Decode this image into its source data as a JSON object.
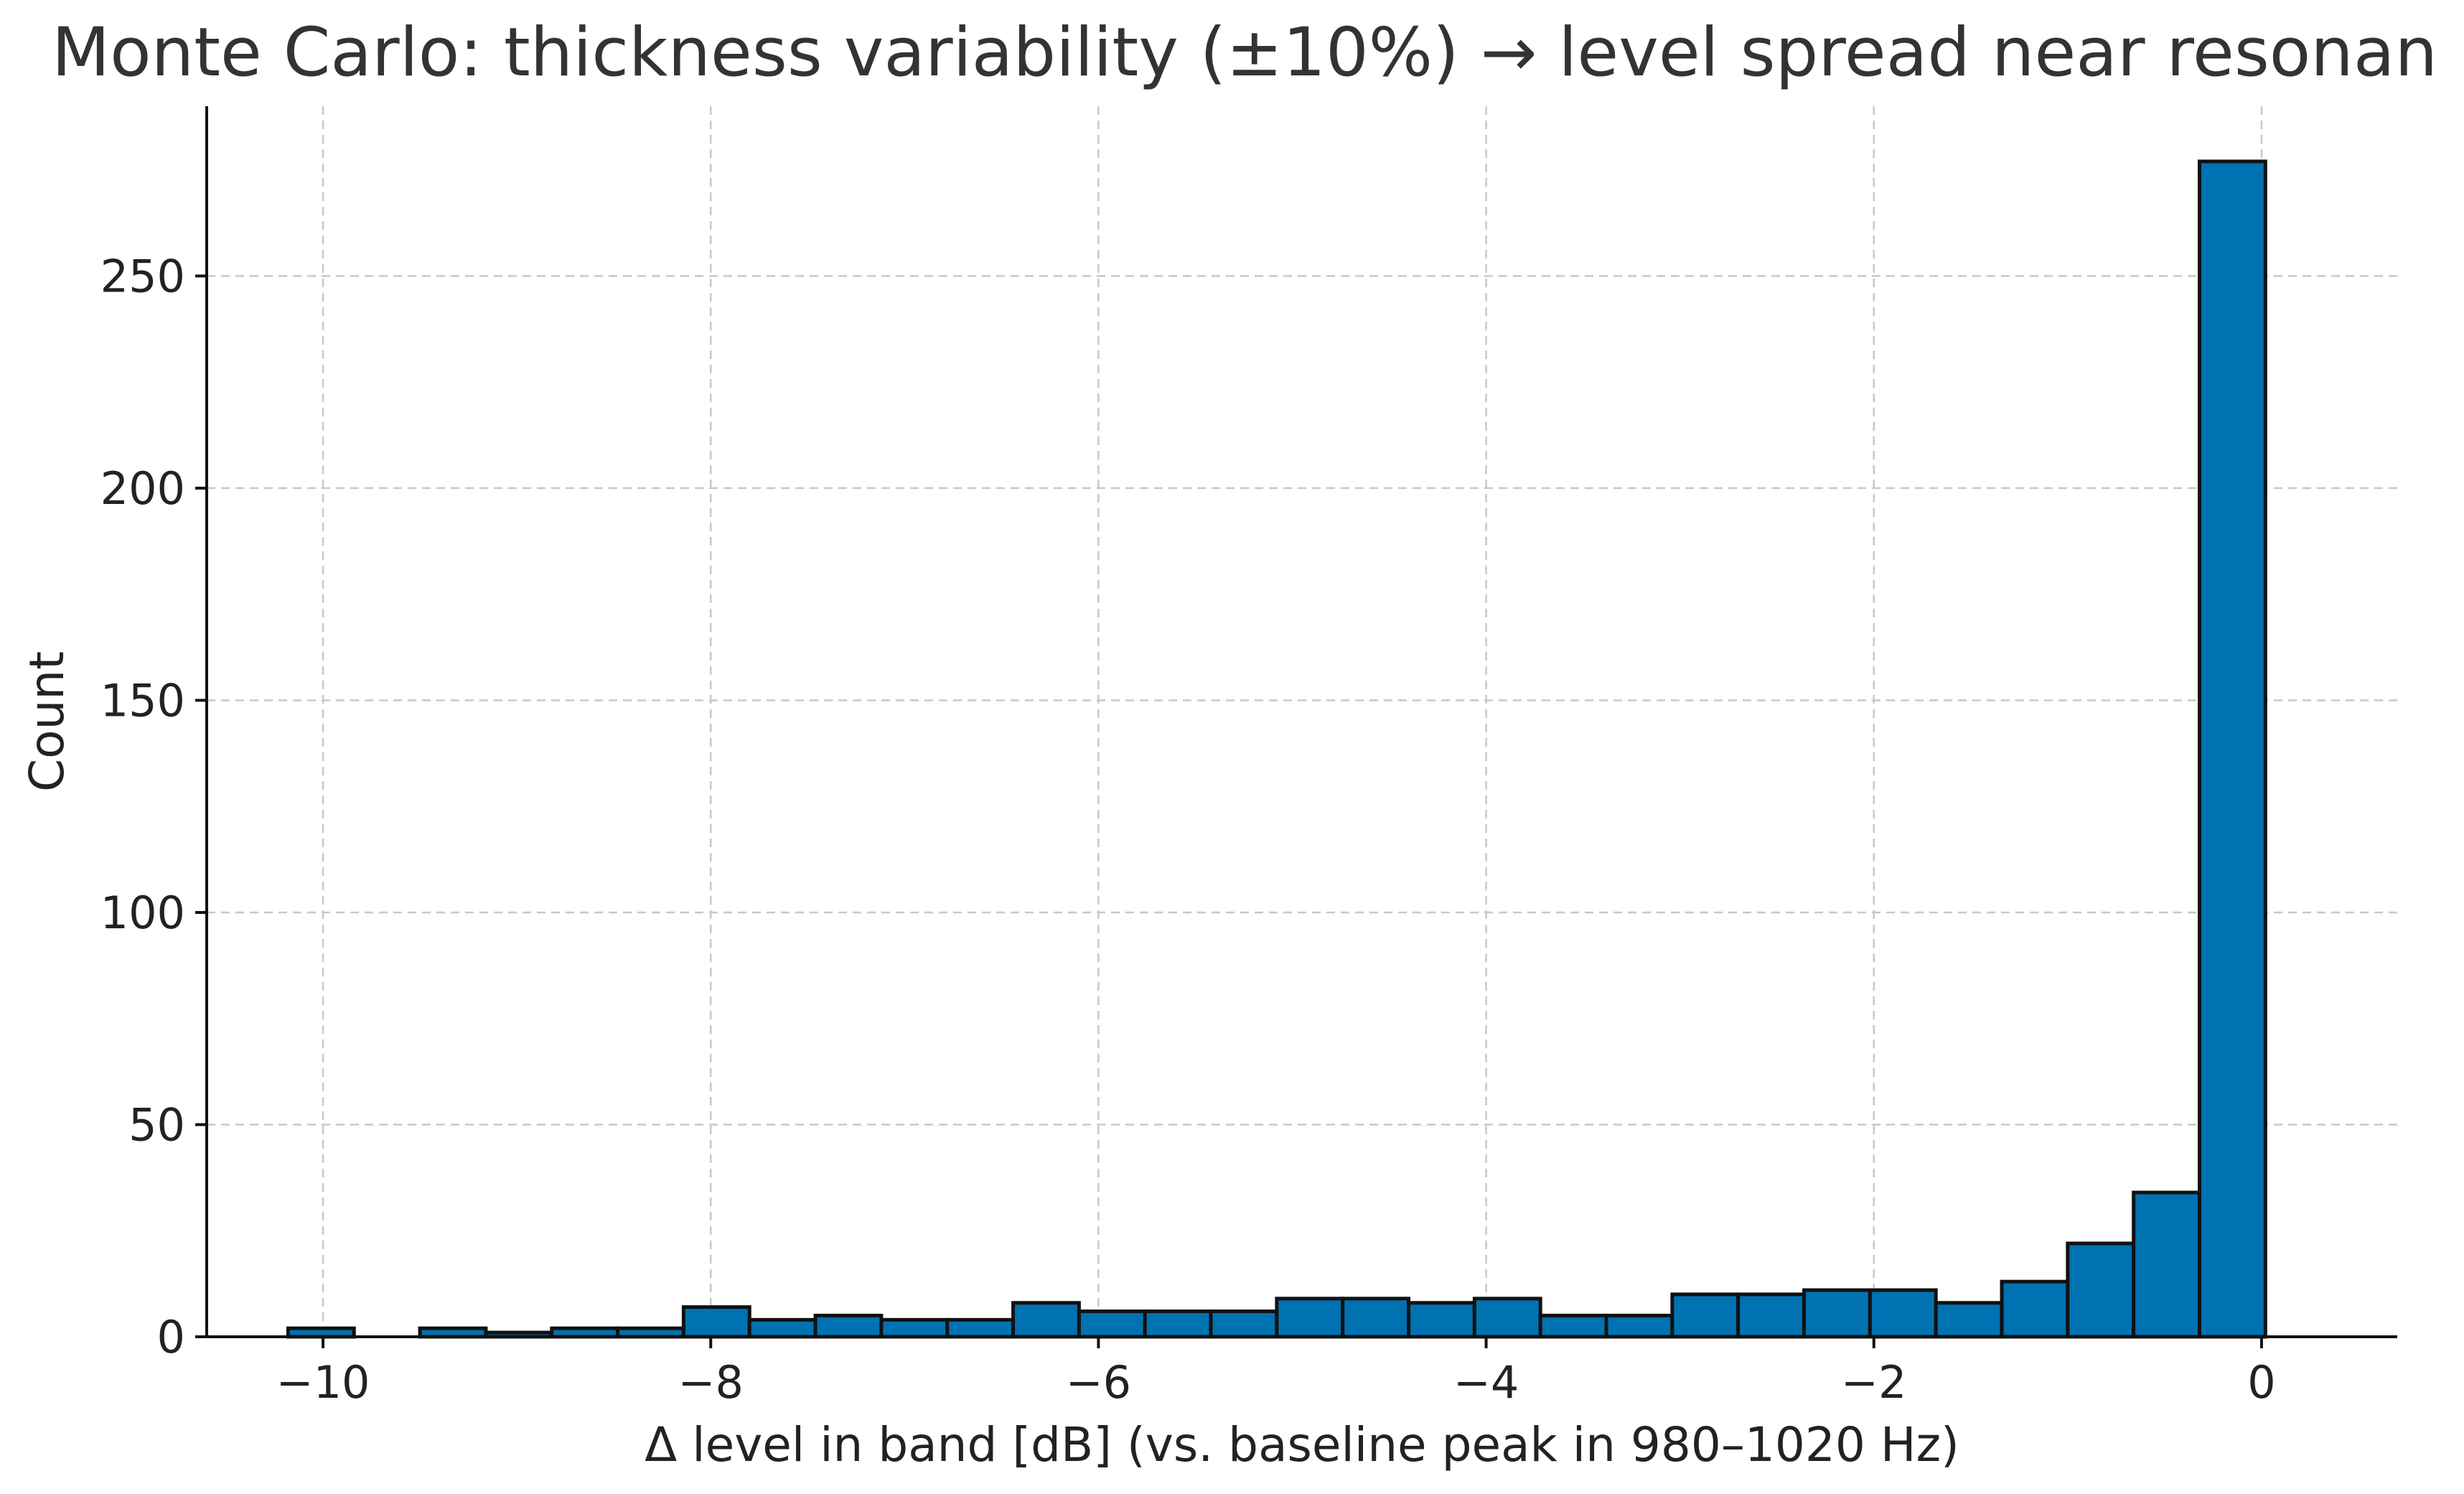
{
  "chart_data": {
    "type": "bar",
    "title": "Monte Carlo: thickness variability (±10%) → level spread near resonan",
    "xlabel": "Δ level in band [dB] (vs. baseline peak in 980–1020 Hz)",
    "ylabel": "Count",
    "xlim": [
      -10.6,
      0.7
    ],
    "ylim": [
      0,
      290
    ],
    "grid": true,
    "bar_color": "#0072b2",
    "x_ticks": [
      {
        "value": -10,
        "label": "−10"
      },
      {
        "value": -8,
        "label": "−8"
      },
      {
        "value": -6,
        "label": "−6"
      },
      {
        "value": -4,
        "label": "−4"
      },
      {
        "value": -2,
        "label": "−2"
      },
      {
        "value": 0,
        "label": "0"
      }
    ],
    "y_ticks": [
      {
        "value": 0,
        "label": "0"
      },
      {
        "value": 50,
        "label": "50"
      },
      {
        "value": 100,
        "label": "100"
      },
      {
        "value": 150,
        "label": "150"
      },
      {
        "value": 200,
        "label": "200"
      },
      {
        "value": 250,
        "label": "250"
      }
    ],
    "bins": [
      {
        "x0": -10.18,
        "x1": -9.84,
        "count": 2
      },
      {
        "x0": -9.84,
        "x1": -9.5,
        "count": 0
      },
      {
        "x0": -9.5,
        "x1": -9.16,
        "count": 2
      },
      {
        "x0": -9.16,
        "x1": -8.82,
        "count": 1
      },
      {
        "x0": -8.82,
        "x1": -8.48,
        "count": 2
      },
      {
        "x0": -8.48,
        "x1": -8.14,
        "count": 2
      },
      {
        "x0": -8.14,
        "x1": -7.8,
        "count": 7
      },
      {
        "x0": -7.8,
        "x1": -7.46,
        "count": 4
      },
      {
        "x0": -7.46,
        "x1": -7.12,
        "count": 5
      },
      {
        "x0": -7.12,
        "x1": -6.78,
        "count": 4
      },
      {
        "x0": -6.78,
        "x1": -6.44,
        "count": 4
      },
      {
        "x0": -6.44,
        "x1": -6.1,
        "count": 8
      },
      {
        "x0": -6.1,
        "x1": -5.76,
        "count": 6
      },
      {
        "x0": -5.76,
        "x1": -5.42,
        "count": 6
      },
      {
        "x0": -5.42,
        "x1": -5.08,
        "count": 6
      },
      {
        "x0": -5.08,
        "x1": -4.74,
        "count": 9
      },
      {
        "x0": -4.74,
        "x1": -4.4,
        "count": 9
      },
      {
        "x0": -4.4,
        "x1": -4.06,
        "count": 8
      },
      {
        "x0": -4.06,
        "x1": -3.72,
        "count": 9
      },
      {
        "x0": -3.72,
        "x1": -3.38,
        "count": 5
      },
      {
        "x0": -3.38,
        "x1": -3.04,
        "count": 5
      },
      {
        "x0": -3.04,
        "x1": -2.7,
        "count": 10
      },
      {
        "x0": -2.7,
        "x1": -2.36,
        "count": 10
      },
      {
        "x0": -2.36,
        "x1": -2.02,
        "count": 11
      },
      {
        "x0": -2.02,
        "x1": -1.68,
        "count": 11
      },
      {
        "x0": -1.68,
        "x1": -1.34,
        "count": 8
      },
      {
        "x0": -1.34,
        "x1": -1.0,
        "count": 13
      },
      {
        "x0": -1.0,
        "x1": -0.66,
        "count": 22
      },
      {
        "x0": -0.66,
        "x1": -0.32,
        "count": 34
      },
      {
        "x0": -0.32,
        "x1": 0.02,
        "count": 277
      }
    ]
  }
}
